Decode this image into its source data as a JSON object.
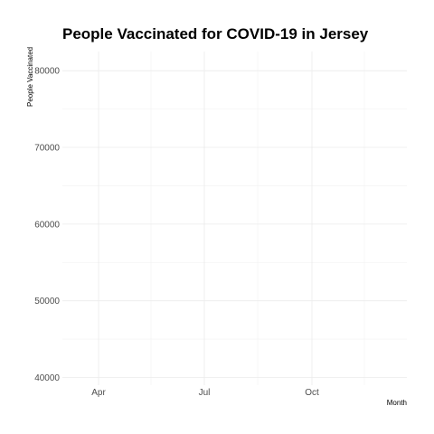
{
  "chart_data": {
    "type": "line",
    "title": "People Vaccinated for COVID-19 in Jersey",
    "xlabel": "Month",
    "ylabel": "People Vaccinated",
    "x_ticks": [
      "Apr",
      "Jul",
      "Oct"
    ],
    "y_ticks": [
      40000,
      50000,
      60000,
      70000,
      80000
    ],
    "ylim": [
      39000,
      82500
    ],
    "grid": true,
    "series": []
  }
}
